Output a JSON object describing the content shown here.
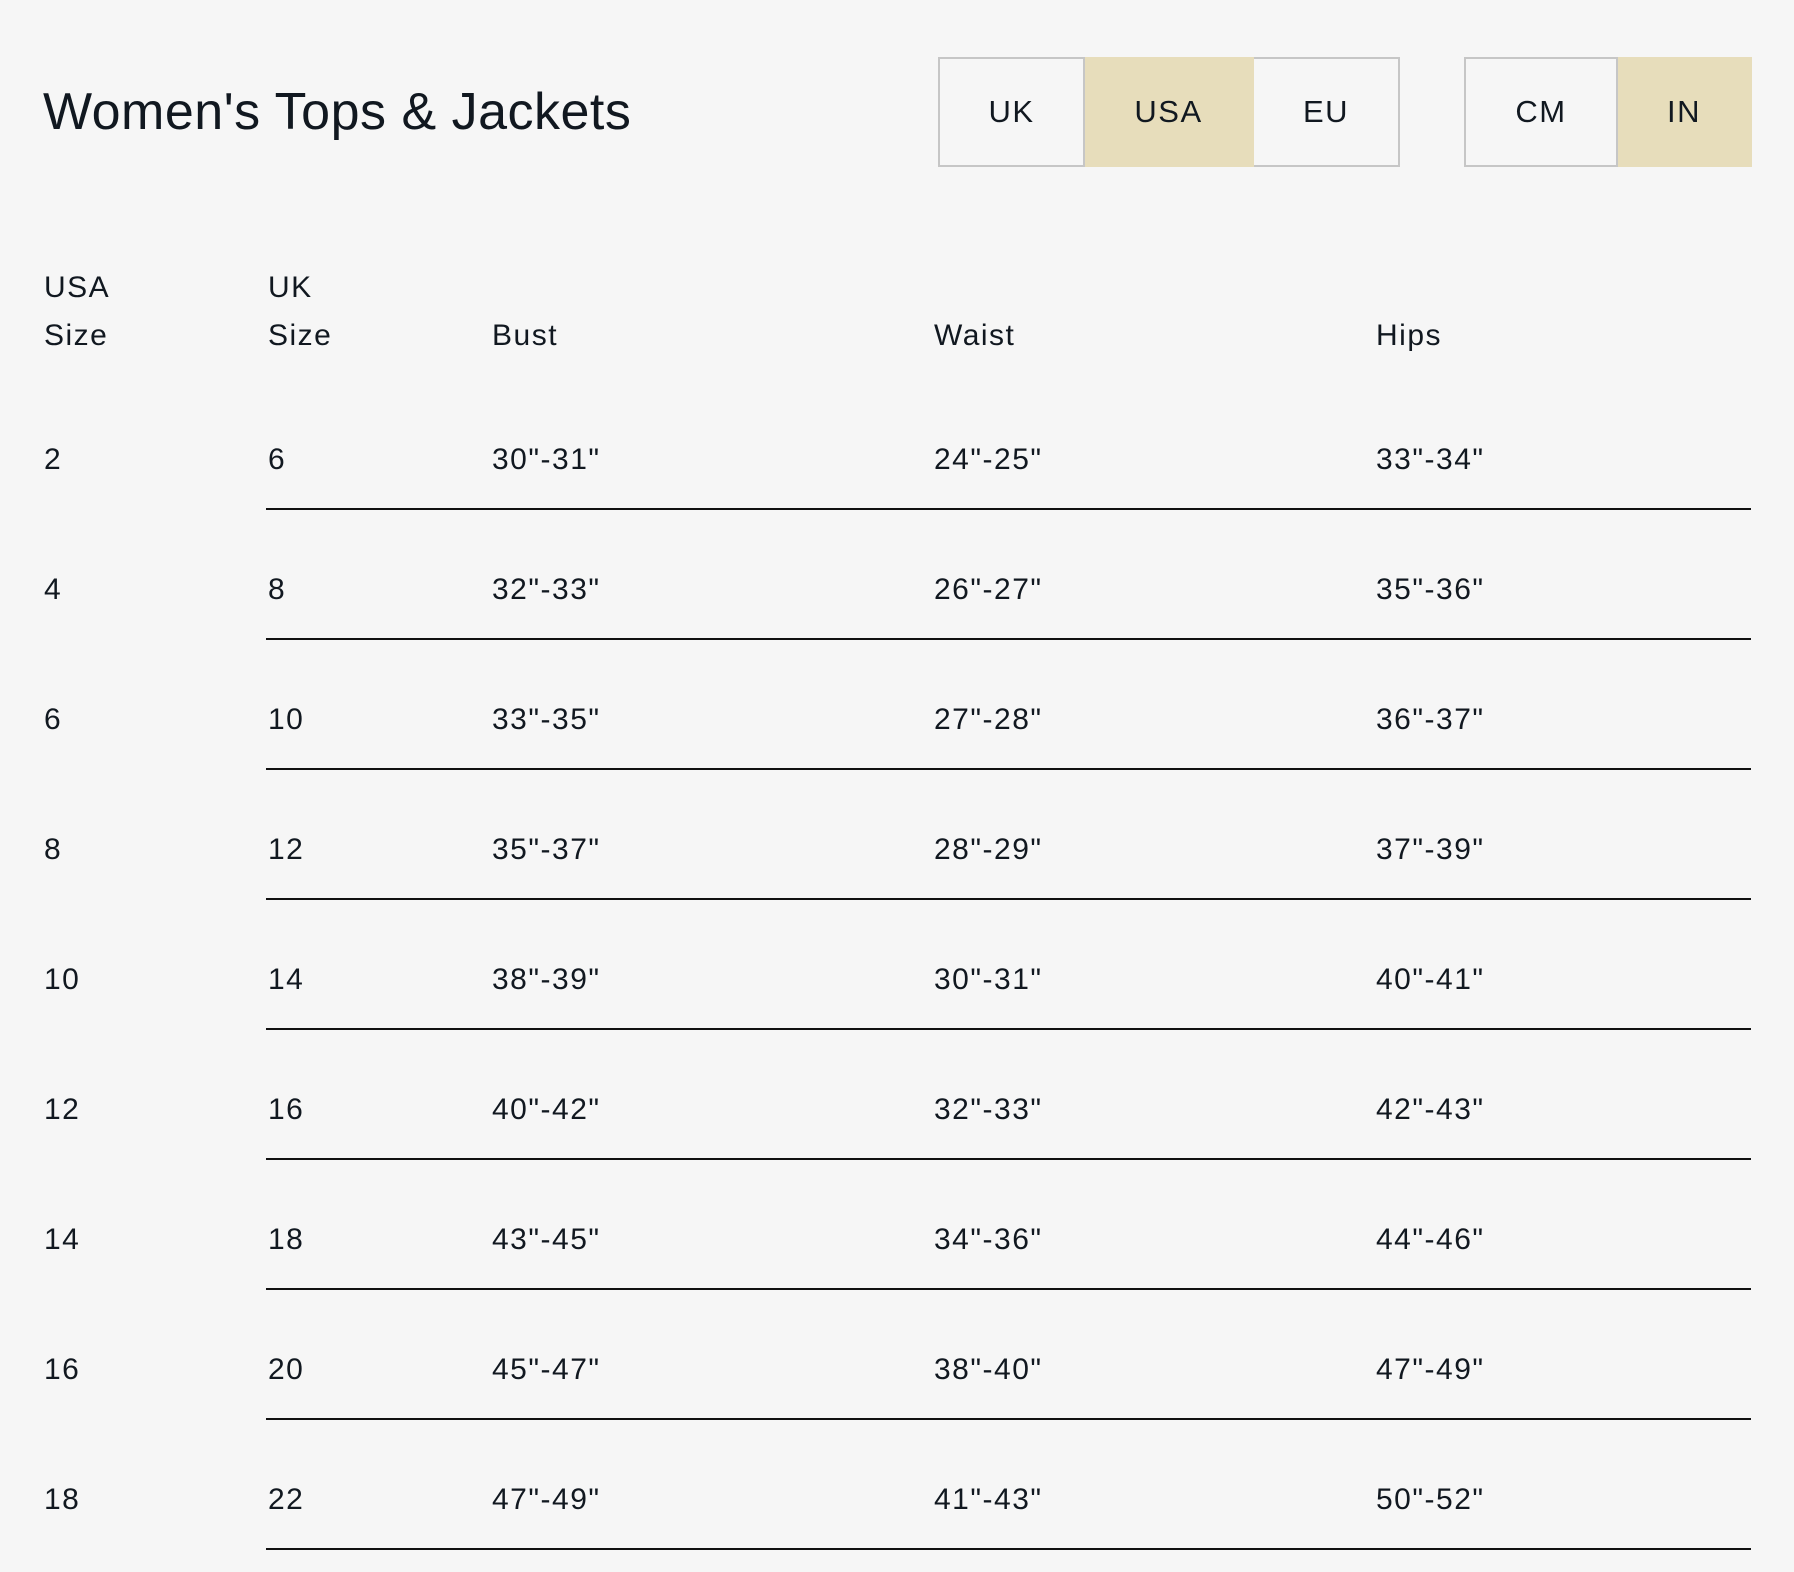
{
  "title": "Women's Tops & Jackets",
  "region_selector": {
    "options": [
      "UK",
      "USA",
      "EU"
    ],
    "selected": "USA"
  },
  "unit_selector": {
    "options": [
      "CM",
      "IN"
    ],
    "selected": "IN"
  },
  "colors": {
    "active": "#e7ddbb",
    "background": "#f6f6f6",
    "border": "#c6c6c6"
  },
  "table": {
    "headers": [
      [
        "USA",
        "Size"
      ],
      [
        "UK",
        "Size"
      ],
      [
        "Bust"
      ],
      [
        "Waist"
      ],
      [
        "Hips"
      ]
    ],
    "rows": [
      [
        "2",
        "6",
        "30\"-31\"",
        "24\"-25\"",
        "33\"-34\""
      ],
      [
        "4",
        "8",
        "32\"-33\"",
        "26\"-27\"",
        "35\"-36\""
      ],
      [
        "6",
        "10",
        "33\"-35\"",
        "27\"-28\"",
        "36\"-37\""
      ],
      [
        "8",
        "12",
        "35\"-37\"",
        "28\"-29\"",
        "37\"-39\""
      ],
      [
        "10",
        "14",
        "38\"-39\"",
        "30\"-31\"",
        "40\"-41\""
      ],
      [
        "12",
        "16",
        "40\"-42\"",
        "32\"-33\"",
        "42\"-43\""
      ],
      [
        "14",
        "18",
        "43\"-45\"",
        "34\"-36\"",
        "44\"-46\""
      ],
      [
        "16",
        "20",
        "45\"-47\"",
        "38\"-40\"",
        "47\"-49\""
      ],
      [
        "18",
        "22",
        "47\"-49\"",
        "41\"-43\"",
        "50\"-52\""
      ]
    ]
  }
}
